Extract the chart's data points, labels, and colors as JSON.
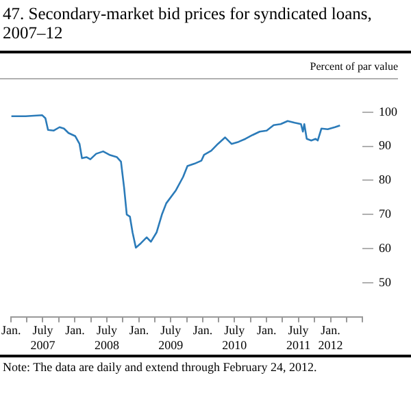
{
  "chart_data": {
    "type": "line",
    "title": "47.   Secondary-market bid prices for syndicated loans, 2007–12",
    "ylabel": "Percent of par value",
    "annotations": [
      "Note: The data are daily and extend through February 24, 2012."
    ],
    "x": [
      "2007-01-02",
      "2007-03-25",
      "2007-06-28",
      "2007-07-16",
      "2007-07-31",
      "2007-09-02",
      "2007-10-05",
      "2007-10-30",
      "2007-11-25",
      "2008-01-02",
      "2008-01-27",
      "2008-02-10",
      "2008-03-08",
      "2008-03-29",
      "2008-05-01",
      "2008-06-10",
      "2008-07-20",
      "2008-08-28",
      "2008-09-20",
      "2008-10-08",
      "2008-10-23",
      "2008-11-10",
      "2008-11-25",
      "2008-12-14",
      "2009-01-12",
      "2009-02-14",
      "2009-03-10",
      "2009-04-12",
      "2009-05-12",
      "2009-06-06",
      "2009-07-31",
      "2009-09-10",
      "2009-10-05",
      "2009-11-14",
      "2009-12-24",
      "2010-01-08",
      "2010-02-18",
      "2010-03-28",
      "2010-05-08",
      "2010-06-14",
      "2010-07-24",
      "2010-09-02",
      "2010-10-12",
      "2010-11-22",
      "2011-01-01",
      "2011-02-10",
      "2011-03-22",
      "2011-05-01",
      "2011-06-10",
      "2011-07-16",
      "2011-07-27",
      "2011-08-04",
      "2011-08-18",
      "2011-09-13",
      "2011-10-08",
      "2011-10-20",
      "2011-11-10",
      "2011-12-16",
      "2012-01-26",
      "2012-02-24"
    ],
    "series": [
      {
        "color": "#2b7bb9",
        "values": [
          98.8,
          98.8,
          99.1,
          98.2,
          94.8,
          94.6,
          95.6,
          95.2,
          93.9,
          93.0,
          90.7,
          86.5,
          86.8,
          86.2,
          87.8,
          88.5,
          87.4,
          86.8,
          85.5,
          77.8,
          70.0,
          69.4,
          64.8,
          60.3,
          61.6,
          63.3,
          62.0,
          64.8,
          70.0,
          73.3,
          77.1,
          81.0,
          84.2,
          84.9,
          85.8,
          87.5,
          88.7,
          90.7,
          92.6,
          90.7,
          91.3,
          92.2,
          93.3,
          94.3,
          94.6,
          96.2,
          96.5,
          97.4,
          96.9,
          96.5,
          94.3,
          96.5,
          92.2,
          91.7,
          92.2,
          91.7,
          95.2,
          95.0,
          95.6,
          96.1
        ]
      }
    ],
    "xlim": [
      "2007-01-01",
      "2012-07-01"
    ],
    "xticks": [
      {
        "value": "2007-01",
        "label": "Jan."
      },
      {
        "value": "2007-04",
        "label": null
      },
      {
        "value": "2007-07",
        "label": "July 2007"
      },
      {
        "value": "2007-10",
        "label": null
      },
      {
        "value": "2008-01",
        "label": "Jan."
      },
      {
        "value": "2008-04",
        "label": null
      },
      {
        "value": "2008-07",
        "label": "July 2008"
      },
      {
        "value": "2008-10",
        "label": null
      },
      {
        "value": "2009-01",
        "label": "Jan."
      },
      {
        "value": "2009-04",
        "label": null
      },
      {
        "value": "2009-07",
        "label": "July 2009"
      },
      {
        "value": "2009-10",
        "label": null
      },
      {
        "value": "2010-01",
        "label": "Jan."
      },
      {
        "value": "2010-04",
        "label": null
      },
      {
        "value": "2010-07",
        "label": "July 2010"
      },
      {
        "value": "2010-10",
        "label": null
      },
      {
        "value": "2011-01",
        "label": "Jan."
      },
      {
        "value": "2011-04",
        "label": null
      },
      {
        "value": "2011-07",
        "label": "July 2011"
      },
      {
        "value": "2011-10",
        "label": null
      },
      {
        "value": "2012-01",
        "label": "Jan. 2012"
      },
      {
        "value": "2012-04",
        "label": null
      },
      {
        "value": "2012-07",
        "label": null
      }
    ],
    "ylim": [
      40,
      110
    ],
    "yticks": [
      50,
      60,
      70,
      80,
      90,
      100
    ],
    "grid": false,
    "legend": false,
    "marker": "none",
    "line_style": "solid"
  }
}
